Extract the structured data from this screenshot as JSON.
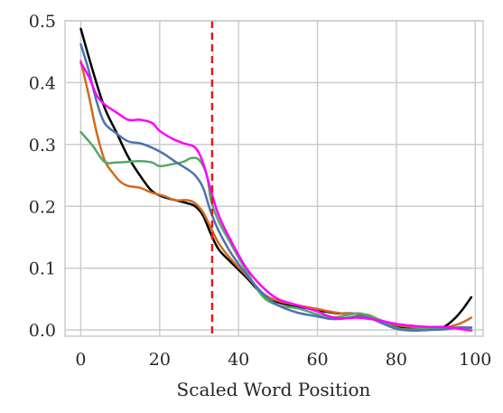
{
  "chart_data": {
    "type": "line",
    "title": "",
    "xlabel": "Scaled Word Position",
    "ylabel": "",
    "xlim": [
      -4,
      102
    ],
    "ylim": [
      -0.01,
      0.5
    ],
    "xticks": [
      0,
      20,
      40,
      60,
      80,
      100
    ],
    "yticks": [
      0.0,
      0.1,
      0.2,
      0.3,
      0.4,
      0.5
    ],
    "xtick_labels": [
      "0",
      "20",
      "40",
      "60",
      "80",
      "100"
    ],
    "ytick_labels": [
      "0.0",
      "0.1",
      "0.2",
      "0.3",
      "0.4",
      "0.5"
    ],
    "grid": true,
    "legend": null,
    "annotations": [
      {
        "type": "vline",
        "x": 33.3,
        "color": "#e31a1c",
        "style": "dashed"
      }
    ],
    "series": [
      {
        "color": "#000000",
        "points": [
          [
            0,
            0.487
          ],
          [
            3,
            0.42
          ],
          [
            6,
            0.36
          ],
          [
            9,
            0.32
          ],
          [
            12,
            0.28
          ],
          [
            15,
            0.25
          ],
          [
            18,
            0.225
          ],
          [
            21,
            0.215
          ],
          [
            24,
            0.21
          ],
          [
            27,
            0.205
          ],
          [
            29,
            0.2
          ],
          [
            31,
            0.185
          ],
          [
            33,
            0.155
          ],
          [
            35,
            0.13
          ],
          [
            38,
            0.11
          ],
          [
            42,
            0.085
          ],
          [
            46,
            0.058
          ],
          [
            50,
            0.045
          ],
          [
            55,
            0.038
          ],
          [
            60,
            0.032
          ],
          [
            65,
            0.027
          ],
          [
            68,
            0.027
          ],
          [
            70,
            0.026
          ],
          [
            73,
            0.022
          ],
          [
            76,
            0.015
          ],
          [
            80,
            0.005
          ],
          [
            84,
            0.002
          ],
          [
            88,
            0.003
          ],
          [
            92,
            0.005
          ],
          [
            95,
            0.02
          ],
          [
            97,
            0.035
          ],
          [
            99,
            0.053
          ]
        ]
      },
      {
        "color": "#d2691e",
        "points": [
          [
            0,
            0.435
          ],
          [
            2,
            0.38
          ],
          [
            4,
            0.32
          ],
          [
            6,
            0.275
          ],
          [
            8,
            0.255
          ],
          [
            10,
            0.24
          ],
          [
            12,
            0.233
          ],
          [
            15,
            0.23
          ],
          [
            18,
            0.222
          ],
          [
            21,
            0.217
          ],
          [
            24,
            0.21
          ],
          [
            27,
            0.21
          ],
          [
            29,
            0.205
          ],
          [
            31,
            0.19
          ],
          [
            33,
            0.165
          ],
          [
            35,
            0.14
          ],
          [
            38,
            0.115
          ],
          [
            42,
            0.088
          ],
          [
            46,
            0.06
          ],
          [
            50,
            0.047
          ],
          [
            55,
            0.04
          ],
          [
            60,
            0.034
          ],
          [
            63,
            0.03
          ],
          [
            66,
            0.027
          ],
          [
            70,
            0.026
          ],
          [
            73,
            0.024
          ],
          [
            76,
            0.016
          ],
          [
            80,
            0.008
          ],
          [
            84,
            0.005
          ],
          [
            88,
            0.005
          ],
          [
            92,
            0.004
          ],
          [
            95,
            0.008
          ],
          [
            97,
            0.013
          ],
          [
            99,
            0.02
          ]
        ]
      },
      {
        "color": "#55a868",
        "points": [
          [
            0,
            0.32
          ],
          [
            3,
            0.298
          ],
          [
            6,
            0.272
          ],
          [
            9,
            0.271
          ],
          [
            12,
            0.272
          ],
          [
            15,
            0.273
          ],
          [
            18,
            0.271
          ],
          [
            20,
            0.265
          ],
          [
            23,
            0.268
          ],
          [
            26,
            0.272
          ],
          [
            28,
            0.278
          ],
          [
            30,
            0.275
          ],
          [
            32,
            0.25
          ],
          [
            33,
            0.21
          ],
          [
            35,
            0.175
          ],
          [
            38,
            0.14
          ],
          [
            42,
            0.095
          ],
          [
            46,
            0.055
          ],
          [
            50,
            0.04
          ],
          [
            55,
            0.035
          ],
          [
            60,
            0.025
          ],
          [
            63,
            0.02
          ],
          [
            66,
            0.022
          ],
          [
            70,
            0.027
          ],
          [
            72,
            0.025
          ],
          [
            75,
            0.018
          ],
          [
            78,
            0.008
          ],
          [
            81,
            0.002
          ],
          [
            84,
            0.001
          ],
          [
            88,
            0.002
          ],
          [
            92,
            0.003
          ],
          [
            96,
            0.004
          ],
          [
            99,
            0.003
          ]
        ]
      },
      {
        "color": "#4c72b0",
        "points": [
          [
            0,
            0.462
          ],
          [
            2,
            0.42
          ],
          [
            4,
            0.37
          ],
          [
            6,
            0.335
          ],
          [
            9,
            0.318
          ],
          [
            12,
            0.305
          ],
          [
            15,
            0.302
          ],
          [
            18,
            0.295
          ],
          [
            21,
            0.285
          ],
          [
            24,
            0.272
          ],
          [
            27,
            0.26
          ],
          [
            29,
            0.25
          ],
          [
            31,
            0.23
          ],
          [
            33,
            0.19
          ],
          [
            35,
            0.16
          ],
          [
            38,
            0.125
          ],
          [
            42,
            0.09
          ],
          [
            46,
            0.06
          ],
          [
            50,
            0.04
          ],
          [
            55,
            0.028
          ],
          [
            60,
            0.022
          ],
          [
            63,
            0.018
          ],
          [
            66,
            0.018
          ],
          [
            70,
            0.022
          ],
          [
            73,
            0.02
          ],
          [
            76,
            0.012
          ],
          [
            80,
            0.002
          ],
          [
            84,
            -0.001
          ],
          [
            88,
            0.0
          ],
          [
            92,
            0.001
          ],
          [
            96,
            0.004
          ],
          [
            99,
            0.004
          ]
        ]
      },
      {
        "color": "#ff00ff",
        "points": [
          [
            0,
            0.432
          ],
          [
            2,
            0.41
          ],
          [
            4,
            0.38
          ],
          [
            6,
            0.365
          ],
          [
            9,
            0.352
          ],
          [
            12,
            0.34
          ],
          [
            15,
            0.34
          ],
          [
            18,
            0.335
          ],
          [
            20,
            0.322
          ],
          [
            23,
            0.31
          ],
          [
            26,
            0.302
          ],
          [
            29,
            0.295
          ],
          [
            31,
            0.27
          ],
          [
            33,
            0.225
          ],
          [
            35,
            0.185
          ],
          [
            38,
            0.145
          ],
          [
            42,
            0.1
          ],
          [
            46,
            0.07
          ],
          [
            50,
            0.05
          ],
          [
            55,
            0.04
          ],
          [
            60,
            0.03
          ],
          [
            63,
            0.022
          ],
          [
            66,
            0.019
          ],
          [
            70,
            0.02
          ],
          [
            73,
            0.018
          ],
          [
            76,
            0.015
          ],
          [
            80,
            0.01
          ],
          [
            84,
            0.007
          ],
          [
            88,
            0.005
          ],
          [
            92,
            0.005
          ],
          [
            95,
            0.003
          ],
          [
            97,
            0.001
          ],
          [
            99,
            -0.001
          ]
        ]
      }
    ]
  }
}
